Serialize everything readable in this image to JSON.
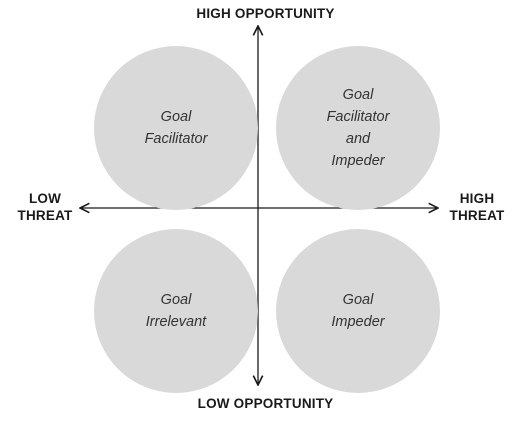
{
  "axes": {
    "top_label": "HIGH OPPORTUNITY",
    "bottom_label": "LOW OPPORTUNITY",
    "left_label": [
      "LOW",
      "THREAT"
    ],
    "right_label": [
      "HIGH",
      "THREAT"
    ]
  },
  "quadrants": {
    "top_left": {
      "lines": [
        "Goal",
        "Facilitator"
      ]
    },
    "top_right": {
      "lines": [
        "Goal",
        "Facilitator",
        "and",
        "Impeder"
      ]
    },
    "bottom_left": {
      "lines": [
        "Goal",
        "Irrelevant"
      ]
    },
    "bottom_right": {
      "lines": [
        "Goal",
        "Impeder"
      ]
    }
  },
  "colors": {
    "circle_fill": "#d9d9d9",
    "axis_stroke": "#1a1a1a",
    "text": "#333333"
  }
}
